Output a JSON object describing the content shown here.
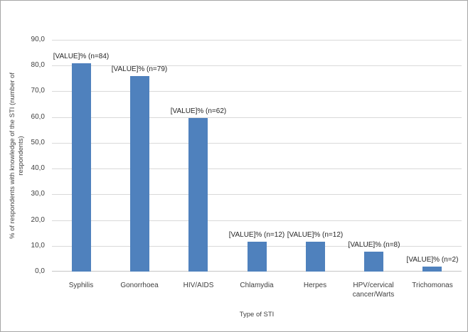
{
  "chart_data": {
    "type": "bar",
    "categories": [
      "Syphilis",
      "Gonorrhoea",
      "HIV/AIDS",
      "Chlamydia",
      "Herpes",
      "HPV/cervical cancer/Warts",
      "Trichomonas"
    ],
    "values": [
      80.8,
      76.0,
      59.6,
      11.5,
      11.5,
      7.7,
      1.9
    ],
    "bar_labels": [
      "[VALUE]% (n=84)",
      "[VALUE]% (n=79)",
      "[VALUE]% (n=62)",
      "[VALUE]% (n=12)",
      "[VALUE]% (n=12)",
      "[VALUE]% (n=8)",
      "[VALUE]% (n=2)"
    ],
    "title": "",
    "xlabel": "Type of STI",
    "ylabel_lines": [
      "% of respondents with knowledge of the STI (number of",
      "respondents)"
    ],
    "ylim": [
      0,
      90
    ],
    "ytick_step": 10,
    "yticks": [
      {
        "value": 90,
        "label": "90,0"
      },
      {
        "value": 80,
        "label": "80,0"
      },
      {
        "value": 70,
        "label": "70,0"
      },
      {
        "value": 60,
        "label": "60,0"
      },
      {
        "value": 50,
        "label": "50,0"
      },
      {
        "value": 40,
        "label": "40,0"
      },
      {
        "value": 30,
        "label": "30,0"
      },
      {
        "value": 20,
        "label": "20,0"
      },
      {
        "value": 10,
        "label": "10,0"
      },
      {
        "value": 0,
        "label": "0,0"
      }
    ],
    "grid": true,
    "legend": false,
    "bar_color": "#4f81bd",
    "gridline_color": "#d9d9d9",
    "axis_line_color": "#c6c6c6",
    "tick_text_color": "#3f3f3f",
    "data_label_color": "#262626",
    "frame_border_color": "#a6a6a6"
  }
}
